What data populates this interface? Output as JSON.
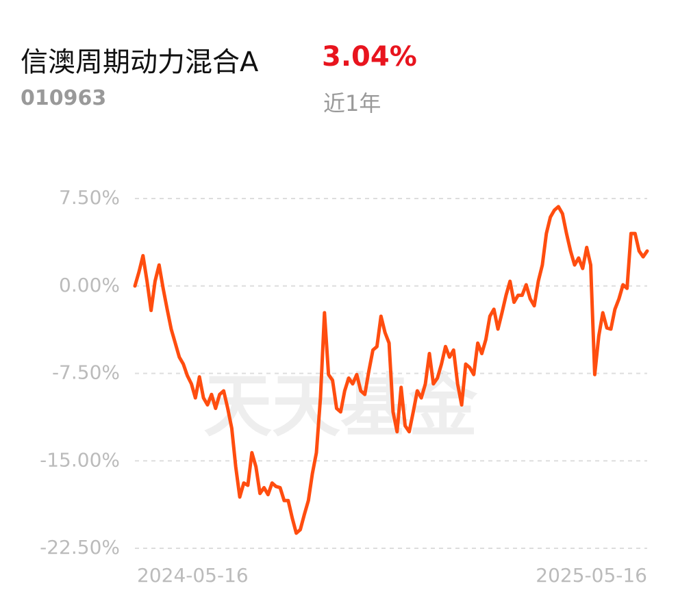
{
  "header": {
    "title": "信澳周期动力混合A",
    "return": "3.04%",
    "code": "010963",
    "period": "近1年"
  },
  "chart_data": {
    "type": "line",
    "watermark": "天天基金",
    "categories": [
      "2024-05-16",
      null,
      null,
      null,
      null,
      null,
      null,
      null,
      null,
      null,
      null,
      null,
      null,
      null,
      null,
      null,
      null,
      null,
      null,
      null,
      null,
      null,
      null,
      null,
      null,
      null,
      null,
      null,
      null,
      null,
      null,
      null,
      null,
      null,
      null,
      null,
      null,
      null,
      null,
      null,
      null,
      null,
      null,
      null,
      null,
      null,
      null,
      null,
      null,
      null,
      null,
      null,
      null,
      null,
      null,
      null,
      null,
      null,
      null,
      null,
      null,
      null,
      null,
      null,
      null,
      null,
      null,
      null,
      null,
      null,
      null,
      null,
      null,
      null,
      null,
      null,
      null,
      null,
      null,
      null,
      null,
      null,
      null,
      null,
      null,
      null,
      null,
      null,
      null,
      null,
      null,
      null,
      null,
      null,
      null,
      null,
      null,
      null,
      null,
      null,
      null,
      null,
      null,
      null,
      null,
      null,
      null,
      null,
      null,
      null,
      null,
      null,
      null,
      null,
      null,
      null,
      null,
      null,
      null,
      null,
      null,
      null,
      null,
      null,
      null,
      null,
      null,
      "2025-05-16"
    ],
    "series": [
      {
        "color": "#ff4d0f",
        "values": [
          0,
          1.2,
          2.6,
          0.4,
          -2.1,
          0.4,
          1.8,
          -0.2,
          -2.0,
          -3.7,
          -4.9,
          -6.1,
          -6.7,
          -7.7,
          -8.4,
          -9.6,
          -7.8,
          -9.6,
          -10.2,
          -9.3,
          -10.5,
          -9.3,
          -9.0,
          -10.5,
          -12.2,
          -15.5,
          -18.1,
          -16.9,
          -17.1,
          -14.3,
          -15.5,
          -17.8,
          -17.3,
          -17.9,
          -16.9,
          -17.2,
          -17.3,
          -18.4,
          -18.4,
          -19.9,
          -21.2,
          -20.9,
          -19.6,
          -18.4,
          -16.1,
          -14.3,
          -9.6,
          -2.3,
          -7.6,
          -8.1,
          -10.5,
          -10.8,
          -9.0,
          -7.9,
          -8.4,
          -7.6,
          -9.0,
          -9.3,
          -7.3,
          -5.5,
          -5.2,
          -2.6,
          -4.0,
          -4.9,
          -10.8,
          -12.5,
          -8.7,
          -12.0,
          -12.5,
          -10.8,
          -9.0,
          -9.6,
          -8.4,
          -5.8,
          -8.4,
          -7.9,
          -6.7,
          -5.2,
          -6.1,
          -5.5,
          -8.4,
          -10.2,
          -6.7,
          -7.0,
          -7.6,
          -4.9,
          -5.8,
          -4.6,
          -2.6,
          -2.0,
          -3.7,
          -2.3,
          -0.8,
          0.4,
          -1.4,
          -0.8,
          -0.8,
          0.1,
          -1.1,
          -1.7,
          0.4,
          1.8,
          4.5,
          5.9,
          6.5,
          6.8,
          6.2,
          4.5,
          3.0,
          1.8,
          2.4,
          1.5,
          3.3,
          1.8,
          -7.6,
          -4.3,
          -2.3,
          -3.6,
          -3.7,
          -2.0,
          -1.1,
          0.1,
          -0.2,
          4.5,
          4.5,
          3.0,
          2.5,
          3.0
        ]
      }
    ],
    "ylim": [
      -22.5,
      7.5
    ],
    "yticks": [
      {
        "value": 7.5,
        "label": "7.50%"
      },
      {
        "value": 0,
        "label": "0.00%"
      },
      {
        "value": -7.5,
        "label": "-7.50%"
      },
      {
        "value": -15,
        "label": "-15.00%"
      },
      {
        "value": -22.5,
        "label": "-22.50%"
      }
    ],
    "grid": true
  }
}
